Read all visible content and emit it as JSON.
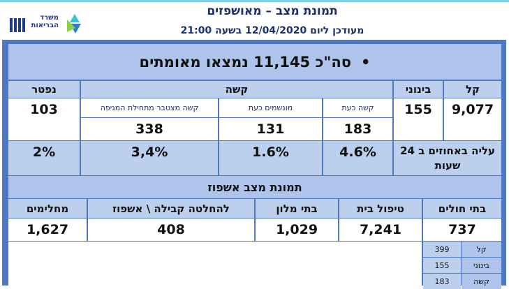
{
  "header": {
    "title": "תמונת מצב – מאושפזים",
    "subtitle": "מעודכן ליום 12/04/2020 בשעה 21:00",
    "logo_line1": "משרד",
    "logo_line2": "הבריאות"
  },
  "summary": "סה\"כ 11,145 נמצאו מאומתים",
  "severity": {
    "headers": [
      "קל",
      "בינוני",
      "קשה",
      "נפטר"
    ],
    "severe_subheaders": [
      "קשה כעת",
      "מונשמים כעת",
      "קשה מצטבר מתחילת המגיפה"
    ],
    "counts": {
      "mild": "9,077",
      "moderate": "155",
      "severe_now": "183",
      "ventilated": "131",
      "severe_cumulative": "338",
      "deceased": "103"
    },
    "change_label": "עליה באחוזים ב 24 שעות",
    "change": {
      "severe_now": "4.6%",
      "ventilated": "1.6%",
      "severe_cumulative": "3,4%",
      "deceased": "2%"
    }
  },
  "hospitalization": {
    "title": "תמונת מצב אשפוז",
    "headers": [
      "בתי חולים",
      "טיפול בית",
      "בתי מלון",
      "להחלטה קבילה \\ אשפוז",
      "מחלימים"
    ],
    "values": [
      "737",
      "7,241",
      "1,029",
      "408",
      "1,627"
    ],
    "hospital_breakdown": [
      [
        "קל",
        "399"
      ],
      [
        "בינוני",
        "155"
      ],
      [
        "קשה",
        "183"
      ]
    ]
  }
}
